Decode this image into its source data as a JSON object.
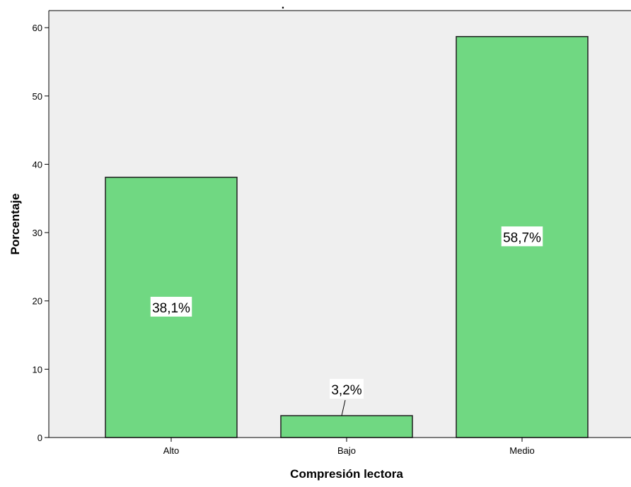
{
  "chart_data": {
    "type": "bar",
    "title": ".",
    "xlabel": "Compresión lectora",
    "ylabel": "Porcentaje",
    "categories": [
      "Alto",
      "Bajo",
      "Medio"
    ],
    "values": [
      38.1,
      3.2,
      58.7
    ],
    "data_labels": [
      "38,1%",
      "3,2%",
      "58,7%"
    ],
    "ylim": [
      0,
      62.5
    ],
    "yticks": [
      0,
      10,
      20,
      30,
      40,
      50,
      60
    ],
    "grid": false,
    "legend": "none",
    "colors": {
      "bar_fill": "#70d882",
      "bar_stroke": "#1f1f1f",
      "plot_background": "#efefef",
      "axis": "#000000",
      "label_box": "#ffffff"
    }
  }
}
